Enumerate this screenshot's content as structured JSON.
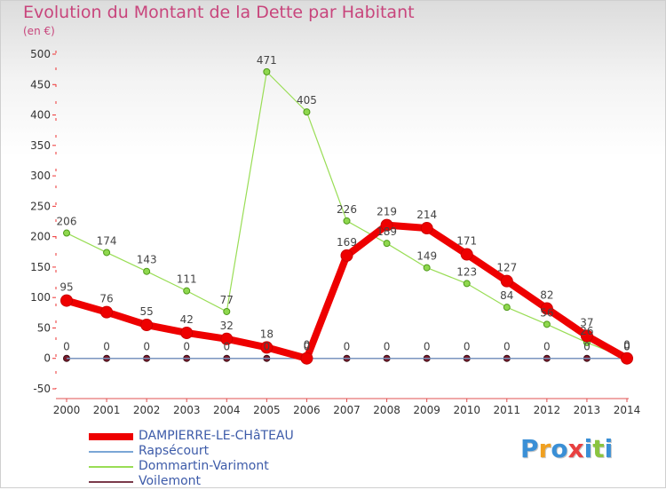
{
  "title": "Evolution du Montant de la Dette par Habitant",
  "subtitle": "(en €)",
  "logo": {
    "text": "Proxiti",
    "letter_colors": [
      "#3a8fd6",
      "#f0a020",
      "#3a8fd6",
      "#e84040",
      "#3a8fd6",
      "#8ac43f",
      "#3a8fd6"
    ]
  },
  "chart_data": {
    "type": "line",
    "title": "Evolution du Montant de la Dette par Habitant",
    "subtitle": "(en €)",
    "xlabel": "",
    "ylabel": "",
    "x": [
      "2000",
      "2001",
      "2002",
      "2003",
      "2004",
      "2005",
      "2006",
      "2007",
      "2008",
      "2009",
      "2010",
      "2011",
      "2012",
      "2013",
      "2014"
    ],
    "ylim": [
      -50,
      500
    ],
    "yticks": [
      -50,
      0,
      50,
      100,
      150,
      200,
      250,
      300,
      350,
      400,
      450,
      500
    ],
    "grid": false,
    "legend_position": "bottom-left",
    "series": [
      {
        "name": "DAMPIERRE-LE-CHâTEAU",
        "color": "#ee0000",
        "values": [
          95,
          76,
          55,
          42,
          32,
          18,
          0,
          169,
          219,
          214,
          171,
          127,
          82,
          37,
          0
        ],
        "labels": [
          "95",
          "76",
          "55",
          "42",
          "32",
          "18",
          "0",
          "169",
          "219",
          "214",
          "171",
          "127",
          "82",
          "37",
          "0"
        ]
      },
      {
        "name": "Rapsécourt",
        "color": "#7aa6d6",
        "values": [
          0,
          0,
          0,
          0,
          0,
          0,
          0,
          0,
          0,
          0,
          0,
          0,
          0,
          0,
          0
        ],
        "labels": []
      },
      {
        "name": "Dommartin-Varimont",
        "color": "#99dd55",
        "values": [
          206,
          174,
          143,
          111,
          77,
          471,
          405,
          226,
          189,
          149,
          123,
          84,
          56,
          26,
          0
        ],
        "labels": [
          "206",
          "174",
          "143",
          "111",
          "77",
          "471",
          "405",
          "226",
          "189",
          "149",
          "123",
          "84",
          "56",
          "26",
          "0"
        ]
      },
      {
        "name": "Voilemont",
        "color": "#7a3a4a",
        "values": [
          0,
          0,
          0,
          0,
          0,
          0,
          0,
          0,
          0,
          0,
          0,
          0,
          0,
          0,
          0
        ],
        "labels": [
          "0",
          "0",
          "0",
          "0",
          "0",
          "0",
          "0",
          "0",
          "0",
          "0",
          "0",
          "0",
          "0",
          "0",
          "0"
        ]
      }
    ]
  }
}
